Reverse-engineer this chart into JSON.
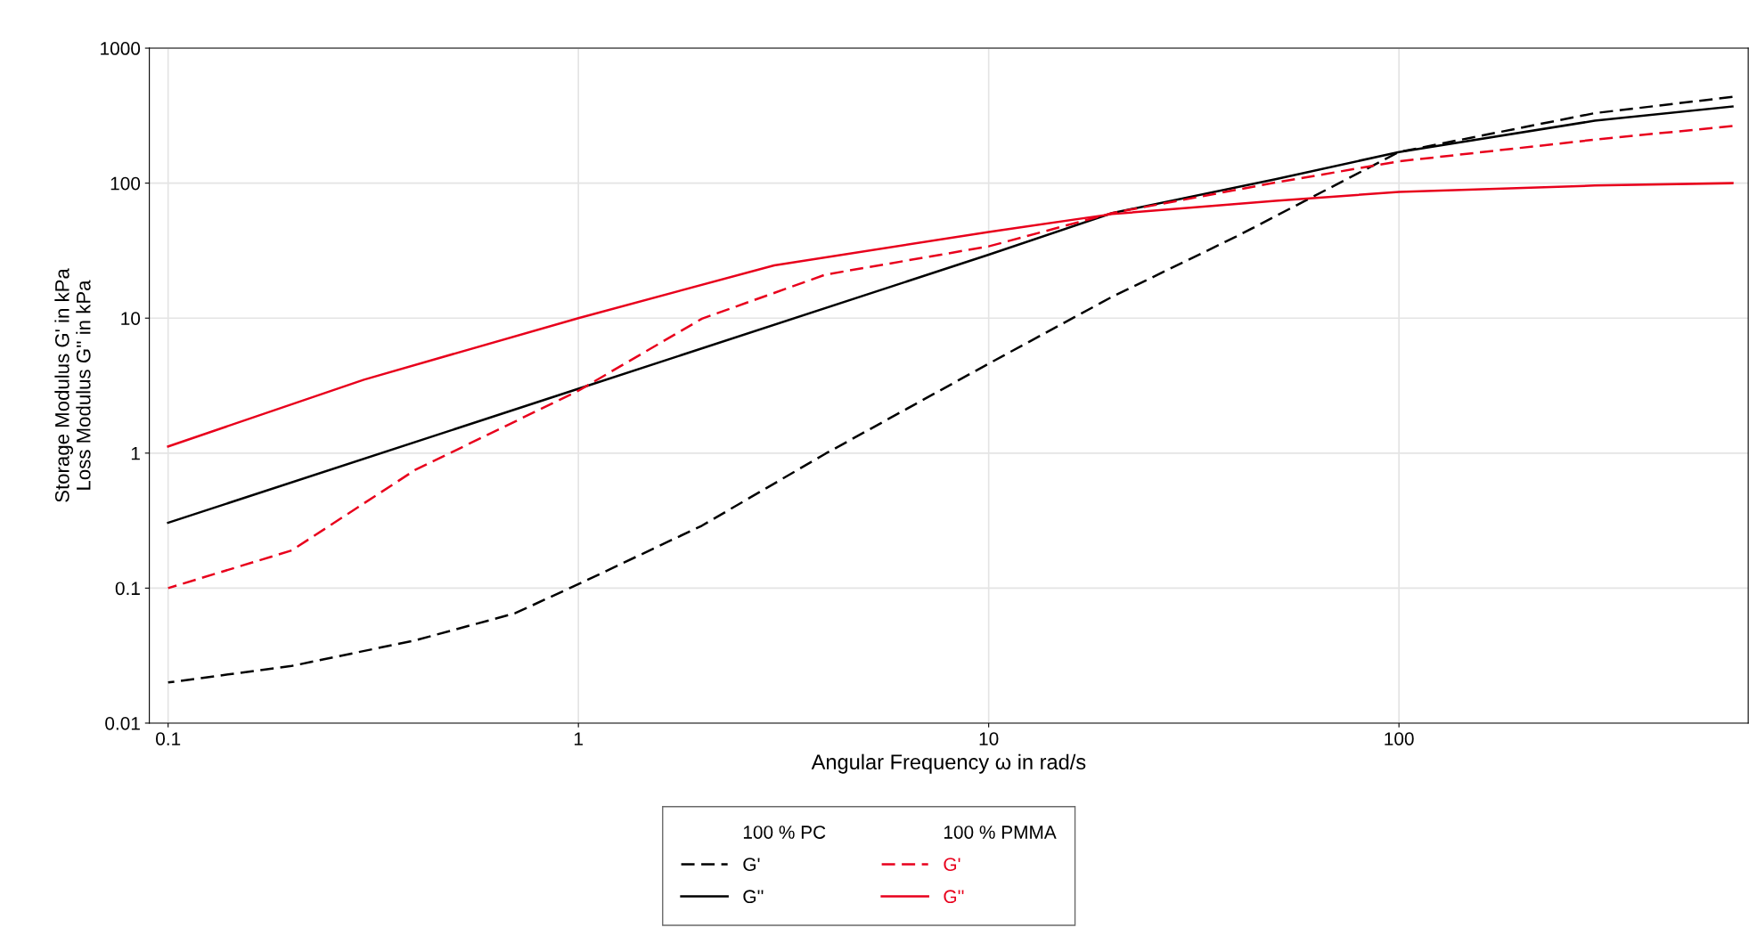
{
  "chart_data": {
    "type": "line",
    "xlabel": "Angular Frequency ω in rad/s",
    "ylabel": "Storage Modulus G' in kPa\nLoss Modulus G'' in kPa",
    "log": "xy",
    "grid": true,
    "legend": "bottom",
    "xlim": [
      0.09,
      710
    ],
    "ylim": [
      0.01,
      1000
    ],
    "xticks": [
      0.1,
      1,
      10,
      100
    ],
    "yticks": [
      0.01,
      0.1,
      1,
      10,
      100,
      1000
    ],
    "annotations": [
      "100 % PC",
      "100 % PMMA"
    ],
    "series": [
      {
        "name": "G'",
        "color": "#000000",
        "line_style": "dashed",
        "x": [
          0.1,
          0.2,
          0.4,
          0.7,
          1,
          2,
          4,
          10,
          20,
          40,
          100,
          300,
          650
        ],
        "values": [
          0.02,
          0.0265,
          0.041,
          0.065,
          0.107,
          0.29,
          0.99,
          4.6,
          14.4,
          40,
          170,
          330,
          435
        ]
      },
      {
        "name": "G''",
        "color": "#000000",
        "line_style": "solid",
        "x": [
          0.1,
          1,
          10,
          20,
          50,
          100,
          300,
          650
        ],
        "values": [
          0.305,
          3.0,
          29.5,
          60,
          107,
          170,
          290,
          370
        ]
      },
      {
        "name": "G'",
        "color": "#e8001c",
        "line_style": "dashed",
        "x": [
          0.1,
          0.2,
          0.4,
          1,
          2,
          4,
          10,
          20,
          50,
          100,
          300,
          650
        ],
        "values": [
          0.1,
          0.19,
          0.75,
          2.9,
          9.9,
          21,
          34,
          60,
          101,
          145,
          210,
          265
        ]
      },
      {
        "name": "G''",
        "color": "#e8001c",
        "line_style": "solid",
        "x": [
          0.1,
          0.3,
          1,
          3,
          10,
          20,
          50,
          100,
          300,
          650
        ],
        "values": [
          1.12,
          3.5,
          10,
          24.6,
          43.5,
          59,
          74,
          86,
          96,
          100
        ]
      }
    ]
  }
}
